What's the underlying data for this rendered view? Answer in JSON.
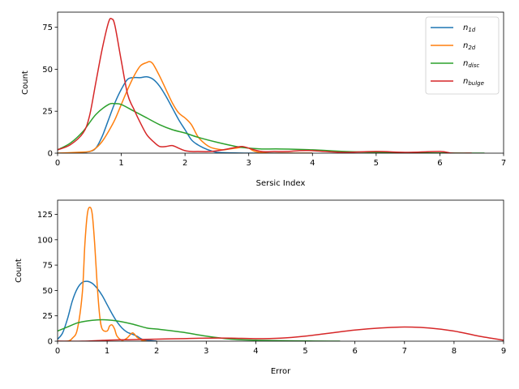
{
  "colors": {
    "n1d": "#1f77b4",
    "n2d": "#ff7f0e",
    "ndisc": "#2ca02c",
    "nbulge": "#d62728"
  },
  "legend": [
    {
      "key": "n1d",
      "base": "n",
      "sub": "1d"
    },
    {
      "key": "n2d",
      "base": "n",
      "sub": "2d"
    },
    {
      "key": "ndisc",
      "base": "n",
      "sub": "disc"
    },
    {
      "key": "nbulge",
      "base": "n",
      "sub": "bulge"
    }
  ],
  "chart_data": [
    {
      "type": "line",
      "xlabel": "Sersic Index",
      "ylabel": "Count",
      "xlim": [
        0,
        7
      ],
      "ylim": [
        0,
        84
      ],
      "xticks": [
        0,
        1,
        2,
        3,
        4,
        5,
        6,
        7
      ],
      "yticks": [
        0,
        25,
        50,
        75
      ],
      "legend": "top-right",
      "series": [
        {
          "key": "n1d",
          "x": [
            0,
            0.3,
            0.5,
            0.6,
            0.7,
            0.8,
            0.9,
            1.0,
            1.1,
            1.2,
            1.3,
            1.4,
            1.5,
            1.6,
            1.7,
            1.8,
            1.9,
            2.0,
            2.1,
            2.2,
            2.3,
            2.4,
            2.5,
            2.7,
            3.0,
            3.5,
            4.0
          ],
          "y": [
            0,
            0,
            1,
            3,
            10,
            20,
            30,
            38,
            44,
            45,
            45,
            45.5,
            44,
            40,
            34,
            27,
            20,
            14,
            8,
            5,
            3,
            1.5,
            0.5,
            0.2,
            0,
            0,
            0
          ]
        },
        {
          "key": "n2d",
          "x": [
            0,
            0.3,
            0.5,
            0.6,
            0.7,
            0.8,
            0.9,
            1.0,
            1.1,
            1.2,
            1.3,
            1.4,
            1.45,
            1.5,
            1.6,
            1.7,
            1.8,
            1.9,
            2.0,
            2.1,
            2.2,
            2.3,
            2.4,
            2.5,
            2.6,
            2.7,
            2.8,
            2.9,
            3.0,
            3.1,
            3.3,
            3.5,
            4.0
          ],
          "y": [
            0,
            0.5,
            1,
            3,
            7,
            13,
            20,
            29,
            38,
            46,
            52,
            54,
            54.5,
            53,
            46,
            38,
            30,
            24,
            21,
            17,
            10,
            6,
            3.5,
            2.5,
            2,
            2.5,
            3,
            3.5,
            3,
            1,
            0,
            0,
            0
          ]
        },
        {
          "key": "ndisc",
          "x": [
            0,
            0.2,
            0.4,
            0.6,
            0.8,
            0.9,
            1.0,
            1.2,
            1.4,
            1.6,
            1.8,
            2.0,
            2.2,
            2.5,
            2.8,
            3.0,
            3.2,
            3.5,
            4.0,
            4.5,
            5.0,
            5.5,
            6.0,
            6.5,
            6.7
          ],
          "y": [
            2,
            6,
            13,
            23,
            29,
            29.5,
            29,
            25,
            21,
            17,
            14,
            12,
            9.5,
            6.5,
            4,
            3,
            2.5,
            2.5,
            2,
            1,
            0.5,
            0.2,
            0.1,
            0,
            0
          ]
        },
        {
          "key": "nbulge",
          "x": [
            0,
            0.2,
            0.4,
            0.5,
            0.6,
            0.7,
            0.8,
            0.85,
            0.9,
            1.0,
            1.1,
            1.2,
            1.3,
            1.4,
            1.5,
            1.6,
            1.7,
            1.8,
            1.9,
            2.0,
            2.1,
            2.2,
            2.4,
            2.6,
            2.8,
            2.9,
            3.0,
            3.2,
            3.4,
            3.6,
            3.8,
            4.0,
            4.2,
            4.5,
            5.0,
            5.5,
            6.0,
            6.2,
            6.5
          ],
          "y": [
            2,
            5,
            12,
            22,
            42,
            62,
            78,
            80,
            76,
            55,
            35,
            26,
            18,
            11,
            7,
            4,
            4,
            4.5,
            3,
            1.5,
            1,
            1,
            1,
            2,
            3.5,
            4,
            3,
            1,
            1,
            1,
            1.5,
            1.5,
            1,
            0.5,
            1,
            0.5,
            1,
            0,
            0
          ]
        }
      ]
    },
    {
      "type": "line",
      "xlabel": "Error",
      "ylabel": "Count",
      "xlim": [
        0,
        9
      ],
      "ylim": [
        0,
        139
      ],
      "xticks": [
        0,
        1,
        2,
        3,
        4,
        5,
        6,
        7,
        8,
        9
      ],
      "yticks": [
        0,
        25,
        50,
        75,
        100,
        125
      ],
      "series": [
        {
          "key": "n1d",
          "x": [
            0,
            0.1,
            0.2,
            0.3,
            0.4,
            0.5,
            0.6,
            0.7,
            0.8,
            0.9,
            1.0,
            1.1,
            1.2,
            1.3,
            1.4,
            1.5,
            1.6,
            1.7,
            1.8,
            2.0
          ],
          "y": [
            2,
            8,
            22,
            40,
            52,
            58,
            59,
            57,
            52,
            45,
            36,
            27,
            19,
            13,
            9,
            7,
            5,
            2,
            1,
            0
          ]
        },
        {
          "key": "n2d",
          "x": [
            0,
            0.2,
            0.3,
            0.4,
            0.5,
            0.55,
            0.6,
            0.65,
            0.7,
            0.75,
            0.8,
            0.85,
            0.9,
            1.0,
            1.05,
            1.1,
            1.15,
            1.2,
            1.3,
            1.4,
            1.5,
            1.55,
            1.6,
            1.7,
            1.8
          ],
          "y": [
            0,
            0,
            3,
            12,
            48,
            95,
            125,
            132,
            125,
            95,
            55,
            25,
            12,
            10,
            15,
            16,
            12,
            5,
            1,
            3,
            8,
            7,
            4,
            1,
            0
          ]
        },
        {
          "key": "ndisc",
          "x": [
            0,
            0.2,
            0.4,
            0.6,
            0.8,
            1.0,
            1.2,
            1.5,
            1.8,
            2.0,
            2.5,
            3.0,
            3.5,
            4.0,
            4.5,
            5.0,
            5.5,
            5.7
          ],
          "y": [
            10,
            14,
            18,
            20,
            21,
            21,
            20,
            17,
            13,
            12,
            9,
            5,
            2,
            1,
            0.5,
            0.2,
            0,
            0
          ]
        },
        {
          "key": "nbulge",
          "x": [
            0,
            0.5,
            1.0,
            1.5,
            2.0,
            2.5,
            3.0,
            3.5,
            4.0,
            4.5,
            5.0,
            5.5,
            6.0,
            6.5,
            7.0,
            7.5,
            8.0,
            8.5,
            9.0
          ],
          "y": [
            0,
            0,
            1,
            1.5,
            2,
            2.5,
            3,
            3,
            2.5,
            3,
            5,
            8,
            11,
            13,
            14,
            13,
            10,
            5,
            1
          ]
        }
      ]
    }
  ]
}
